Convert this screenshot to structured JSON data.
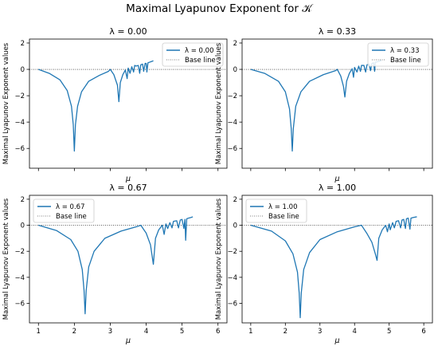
{
  "figure": {
    "title": "Maximal Lyapunov Exponent for 𝒦"
  },
  "chart_data": [
    {
      "type": "line",
      "title": "λ = 0.00",
      "xlabel": "μ",
      "ylabel": "Maximal Lyapunov Exponent values",
      "xlim": [
        0.75,
        6.25
      ],
      "ylim": [
        -7.5,
        2.3
      ],
      "xticks": [
        "1",
        "2",
        "3",
        "4",
        "5",
        "6"
      ],
      "yticks": [
        "2",
        "0",
        "−2",
        "−4",
        "−6"
      ],
      "show_xtick_labels": false,
      "legend": {
        "position": "top-right",
        "entries": [
          "λ = 0.00",
          "Base line"
        ]
      },
      "series": [
        {
          "name": "λ = 0.00",
          "color": "#1f77b4",
          "points": [
            [
              1.0,
              0.0
            ],
            [
              1.3,
              -0.3
            ],
            [
              1.6,
              -0.8
            ],
            [
              1.8,
              -1.6
            ],
            [
              1.92,
              -2.8
            ],
            [
              1.97,
              -4.2
            ],
            [
              2.0,
              -6.2
            ],
            [
              2.03,
              -4.2
            ],
            [
              2.09,
              -2.8
            ],
            [
              2.2,
              -1.7
            ],
            [
              2.4,
              -0.9
            ],
            [
              2.7,
              -0.45
            ],
            [
              2.95,
              -0.15
            ],
            [
              3.0,
              0.0
            ],
            [
              3.1,
              -0.4
            ],
            [
              3.2,
              -1.2
            ],
            [
              3.24,
              -2.45
            ],
            [
              3.28,
              -1.0
            ],
            [
              3.35,
              -0.4
            ],
            [
              3.42,
              -0.05
            ],
            [
              3.47,
              -0.7
            ],
            [
              3.5,
              0.1
            ],
            [
              3.55,
              -0.3
            ],
            [
              3.6,
              0.2
            ],
            [
              3.65,
              -0.2
            ],
            [
              3.68,
              0.3
            ],
            [
              3.72,
              0.25
            ],
            [
              3.78,
              0.3
            ],
            [
              3.82,
              -0.3
            ],
            [
              3.85,
              0.35
            ],
            [
              3.9,
              0.4
            ],
            [
              3.93,
              -0.15
            ],
            [
              3.97,
              0.45
            ],
            [
              4.0,
              0.45
            ],
            [
              4.02,
              -0.2
            ],
            [
              4.05,
              0.5
            ],
            [
              4.1,
              0.55
            ],
            [
              4.15,
              0.6
            ],
            [
              4.2,
              0.65
            ]
          ]
        },
        {
          "name": "Base line",
          "color": "#000000",
          "points": [
            [
              0.75,
              0
            ],
            [
              6.25,
              0
            ]
          ]
        }
      ]
    },
    {
      "type": "line",
      "title": "λ = 0.33",
      "xlabel": "μ",
      "ylabel": "Maximal Lyapunov Exponent values",
      "xlim": [
        0.75,
        6.25
      ],
      "ylim": [
        -7.5,
        2.3
      ],
      "xticks": [
        "1",
        "2",
        "3",
        "4",
        "5",
        "6"
      ],
      "yticks": [
        "2",
        "0",
        "−2",
        "−4",
        "−6"
      ],
      "show_xtick_labels": false,
      "legend": {
        "position": "top-right",
        "entries": [
          "λ = 0.33",
          "Base line"
        ]
      },
      "series": [
        {
          "name": "λ = 0.33",
          "color": "#1f77b4",
          "points": [
            [
              1.0,
              0.0
            ],
            [
              1.4,
              -0.3
            ],
            [
              1.8,
              -0.9
            ],
            [
              2.0,
              -1.7
            ],
            [
              2.12,
              -3.0
            ],
            [
              2.17,
              -4.5
            ],
            [
              2.2,
              -6.2
            ],
            [
              2.23,
              -4.5
            ],
            [
              2.3,
              -2.8
            ],
            [
              2.45,
              -1.7
            ],
            [
              2.7,
              -0.9
            ],
            [
              3.1,
              -0.4
            ],
            [
              3.45,
              -0.1
            ],
            [
              3.5,
              0.0
            ],
            [
              3.6,
              -0.5
            ],
            [
              3.68,
              -1.3
            ],
            [
              3.72,
              -2.1
            ],
            [
              3.77,
              -0.9
            ],
            [
              3.85,
              -0.3
            ],
            [
              3.93,
              0.05
            ],
            [
              3.97,
              -0.6
            ],
            [
              4.0,
              0.15
            ],
            [
              4.07,
              -0.2
            ],
            [
              4.12,
              0.25
            ],
            [
              4.17,
              -0.15
            ],
            [
              4.2,
              0.3
            ],
            [
              4.27,
              0.3
            ],
            [
              4.32,
              -0.2
            ],
            [
              4.36,
              0.35
            ],
            [
              4.42,
              0.4
            ],
            [
              4.46,
              -0.1
            ],
            [
              4.5,
              0.45
            ],
            [
              4.55,
              0.5
            ],
            [
              4.58,
              -0.15
            ],
            [
              4.6,
              0.55
            ],
            [
              4.66,
              0.58
            ],
            [
              4.72,
              0.62
            ],
            [
              4.78,
              0.68
            ]
          ]
        },
        {
          "name": "Base line",
          "color": "#000000",
          "points": [
            [
              0.75,
              0
            ],
            [
              6.25,
              0
            ]
          ]
        }
      ]
    },
    {
      "type": "line",
      "title": "λ = 0.67",
      "xlabel": "μ",
      "ylabel": "Maximal Lyapunov Exponent values",
      "xlim": [
        0.75,
        6.25
      ],
      "ylim": [
        -7.5,
        2.3
      ],
      "xticks": [
        "1",
        "2",
        "3",
        "4",
        "5",
        "6"
      ],
      "yticks": [
        "2",
        "0",
        "−2",
        "−4",
        "−6"
      ],
      "show_xtick_labels": true,
      "legend": {
        "position": "top-left",
        "entries": [
          "λ = 0.67",
          "Base line"
        ]
      },
      "series": [
        {
          "name": "λ = 0.67",
          "color": "#1f77b4",
          "points": [
            [
              1.0,
              0.0
            ],
            [
              1.5,
              -0.4
            ],
            [
              1.9,
              -1.1
            ],
            [
              2.1,
              -2.0
            ],
            [
              2.22,
              -3.4
            ],
            [
              2.27,
              -5.0
            ],
            [
              2.3,
              -6.8
            ],
            [
              2.33,
              -5.0
            ],
            [
              2.4,
              -3.2
            ],
            [
              2.55,
              -2.0
            ],
            [
              2.85,
              -1.0
            ],
            [
              3.3,
              -0.45
            ],
            [
              3.75,
              -0.1
            ],
            [
              3.85,
              0.0
            ],
            [
              4.0,
              -0.6
            ],
            [
              4.12,
              -1.5
            ],
            [
              4.2,
              -3.0
            ],
            [
              4.26,
              -1.0
            ],
            [
              4.35,
              -0.35
            ],
            [
              4.45,
              0.0
            ],
            [
              4.5,
              -0.7
            ],
            [
              4.55,
              0.1
            ],
            [
              4.6,
              -0.25
            ],
            [
              4.66,
              0.2
            ],
            [
              4.72,
              -0.2
            ],
            [
              4.76,
              0.3
            ],
            [
              4.85,
              0.35
            ],
            [
              4.9,
              -0.2
            ],
            [
              4.95,
              0.4
            ],
            [
              5.0,
              0.45
            ],
            [
              5.05,
              -0.25
            ],
            [
              5.08,
              0.45
            ],
            [
              5.1,
              -1.15
            ],
            [
              5.13,
              0.5
            ],
            [
              5.18,
              0.55
            ],
            [
              5.25,
              0.6
            ],
            [
              5.3,
              0.65
            ]
          ]
        },
        {
          "name": "Base line",
          "color": "#000000",
          "points": [
            [
              0.75,
              0
            ],
            [
              6.25,
              0
            ]
          ]
        }
      ]
    },
    {
      "type": "line",
      "title": "λ = 1.00",
      "xlabel": "μ",
      "ylabel": "Maximal Lyapunov Exponent values",
      "xlim": [
        0.75,
        6.25
      ],
      "ylim": [
        -7.5,
        2.3
      ],
      "xticks": [
        "1",
        "2",
        "3",
        "4",
        "5",
        "6"
      ],
      "yticks": [
        "2",
        "0",
        "−2",
        "−4",
        "−6"
      ],
      "show_xtick_labels": true,
      "legend": {
        "position": "top-left",
        "entries": [
          "λ = 1.00",
          "Base line"
        ]
      },
      "series": [
        {
          "name": "λ = 1.00",
          "color": "#1f77b4",
          "points": [
            [
              1.0,
              0.0
            ],
            [
              1.6,
              -0.45
            ],
            [
              2.0,
              -1.2
            ],
            [
              2.22,
              -2.2
            ],
            [
              2.35,
              -3.6
            ],
            [
              2.4,
              -5.2
            ],
            [
              2.43,
              -7.1
            ],
            [
              2.46,
              -5.2
            ],
            [
              2.53,
              -3.4
            ],
            [
              2.7,
              -2.1
            ],
            [
              3.0,
              -1.1
            ],
            [
              3.5,
              -0.5
            ],
            [
              4.0,
              -0.12
            ],
            [
              4.2,
              0.0
            ],
            [
              4.35,
              -0.6
            ],
            [
              4.5,
              -1.3
            ],
            [
              4.6,
              -2.2
            ],
            [
              4.65,
              -2.7
            ],
            [
              4.7,
              -1.0
            ],
            [
              4.8,
              -0.35
            ],
            [
              4.9,
              0.0
            ],
            [
              4.95,
              -0.5
            ],
            [
              5.0,
              0.1
            ],
            [
              5.03,
              -0.35
            ],
            [
              5.1,
              0.2
            ],
            [
              5.15,
              -0.2
            ],
            [
              5.2,
              0.3
            ],
            [
              5.27,
              0.35
            ],
            [
              5.33,
              -0.2
            ],
            [
              5.37,
              0.4
            ],
            [
              5.42,
              0.45
            ],
            [
              5.47,
              -0.25
            ],
            [
              5.5,
              0.5
            ],
            [
              5.55,
              0.55
            ],
            [
              5.6,
              -0.3
            ],
            [
              5.63,
              0.55
            ],
            [
              5.7,
              0.6
            ],
            [
              5.8,
              0.65
            ]
          ]
        },
        {
          "name": "Base line",
          "color": "#000000",
          "points": [
            [
              0.75,
              0
            ],
            [
              6.25,
              0
            ]
          ]
        }
      ]
    }
  ]
}
